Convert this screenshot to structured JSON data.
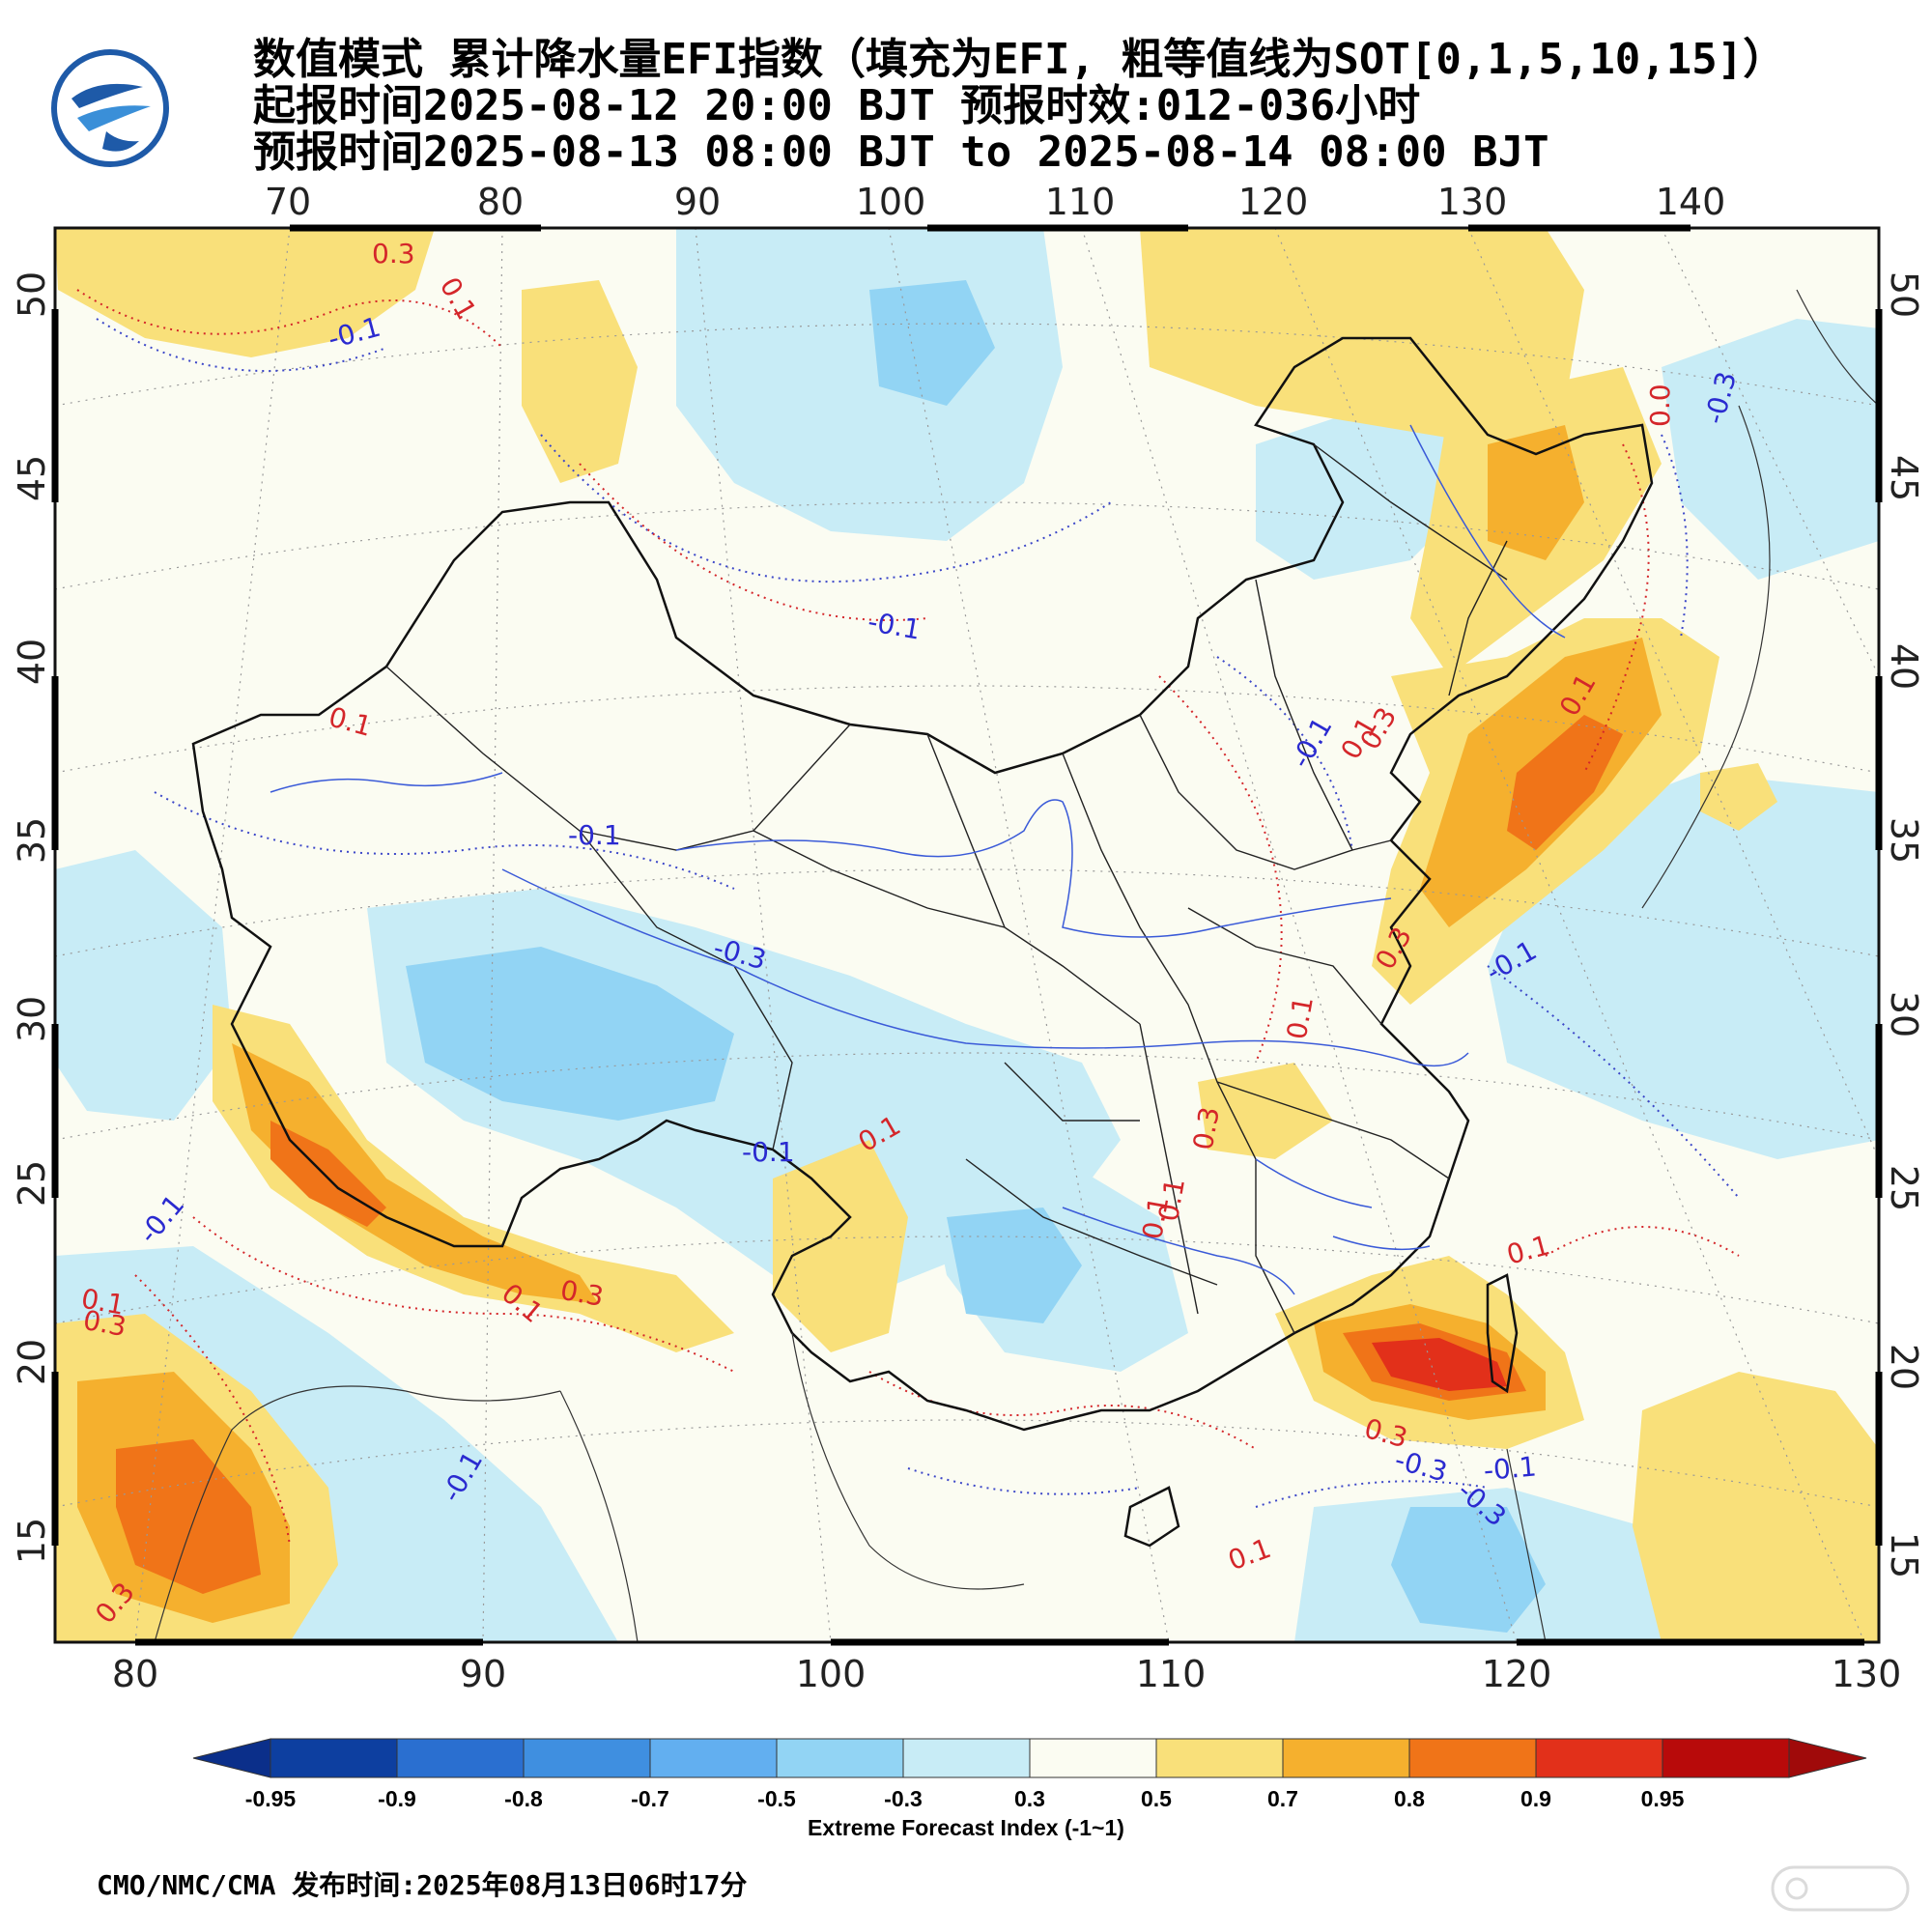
{
  "header": {
    "title_line1": "数值模式 累计降水量EFI指数（填充为EFI, 粗等值线为SOT[0,1,5,10,15]）",
    "title_line2": "起报时间2025-08-12 20:00 BJT 预报时效:012-036小时",
    "title_line3": "预报时间2025-08-13 08:00 BJT to 2025-08-14 08:00 BJT"
  },
  "logo": {
    "icon": "cma-logo-icon",
    "colors": [
      "#1e5aa8",
      "#3a8fd8"
    ]
  },
  "map": {
    "top_lon_ticks": [
      "70",
      "80",
      "90",
      "100",
      "110",
      "120",
      "130",
      "140"
    ],
    "bottom_lon_ticks": [
      "80",
      "90",
      "100",
      "110",
      "120",
      "130"
    ],
    "left_lat_ticks": [
      "50",
      "45",
      "40",
      "35",
      "30",
      "25",
      "20",
      "15"
    ],
    "right_lat_ticks": [
      "50",
      "45",
      "40",
      "35",
      "30",
      "25",
      "20",
      "15"
    ],
    "contour_labels": [
      {
        "text": "0.3",
        "color": "red"
      },
      {
        "text": "0.1",
        "color": "red"
      },
      {
        "text": "-0.1",
        "color": "blue"
      },
      {
        "text": "0.0",
        "color": "red"
      },
      {
        "text": "-0.3",
        "color": "blue"
      },
      {
        "text": "-0.1",
        "color": "blue"
      },
      {
        "text": "0.1",
        "color": "red"
      },
      {
        "text": "-0.1",
        "color": "blue"
      },
      {
        "text": "0.1",
        "color": "red"
      },
      {
        "text": "-0.3",
        "color": "blue"
      },
      {
        "text": "0.3",
        "color": "red"
      },
      {
        "text": "-0.1",
        "color": "blue"
      },
      {
        "text": "0.1",
        "color": "red"
      },
      {
        "text": "0.3",
        "color": "red"
      },
      {
        "text": "-0.1",
        "color": "blue"
      },
      {
        "text": "0.1",
        "color": "red"
      },
      {
        "text": "0.1",
        "color": "red"
      },
      {
        "text": "-0.1",
        "color": "blue"
      },
      {
        "text": "0.1",
        "color": "red"
      },
      {
        "text": "0.3",
        "color": "red"
      },
      {
        "text": "0.1",
        "color": "red"
      },
      {
        "text": "0.3",
        "color": "red"
      },
      {
        "text": "0.1",
        "color": "red"
      },
      {
        "text": "0.3",
        "color": "red"
      },
      {
        "text": "-0.1",
        "color": "blue"
      },
      {
        "text": "-0.3",
        "color": "blue"
      },
      {
        "text": "0.1",
        "color": "red"
      },
      {
        "text": "0.3",
        "color": "red"
      },
      {
        "text": "-0.1",
        "color": "blue"
      },
      {
        "text": "0.1",
        "color": "red"
      },
      {
        "text": "-0.3",
        "color": "blue"
      },
      {
        "text": "0.1",
        "color": "red"
      },
      {
        "text": "0.3",
        "color": "red"
      },
      {
        "text": "-0.1",
        "color": "blue"
      }
    ]
  },
  "colorbar": {
    "title": "Extreme Forecast Index (-1~1)",
    "labels": [
      "-0.95",
      "-0.9",
      "-0.8",
      "-0.7",
      "-0.5",
      "-0.3",
      "0.3",
      "0.5",
      "0.7",
      "0.8",
      "0.9",
      "0.95"
    ],
    "colors": [
      "#0d3fa0",
      "#2a6fd0",
      "#3f8fe0",
      "#62aff0",
      "#92d4f4",
      "#c8ecf6",
      "#fbfcf2",
      "#f9e07a",
      "#f5b02e",
      "#f07418",
      "#e2301a",
      "#b80a0a"
    ],
    "left_arrow_color": "#0b2f8a",
    "right_arrow_color": "#a00a0a"
  },
  "footer": {
    "text": "CMO/NMC/CMA 发布时间:2025年08月13日06时17分"
  }
}
